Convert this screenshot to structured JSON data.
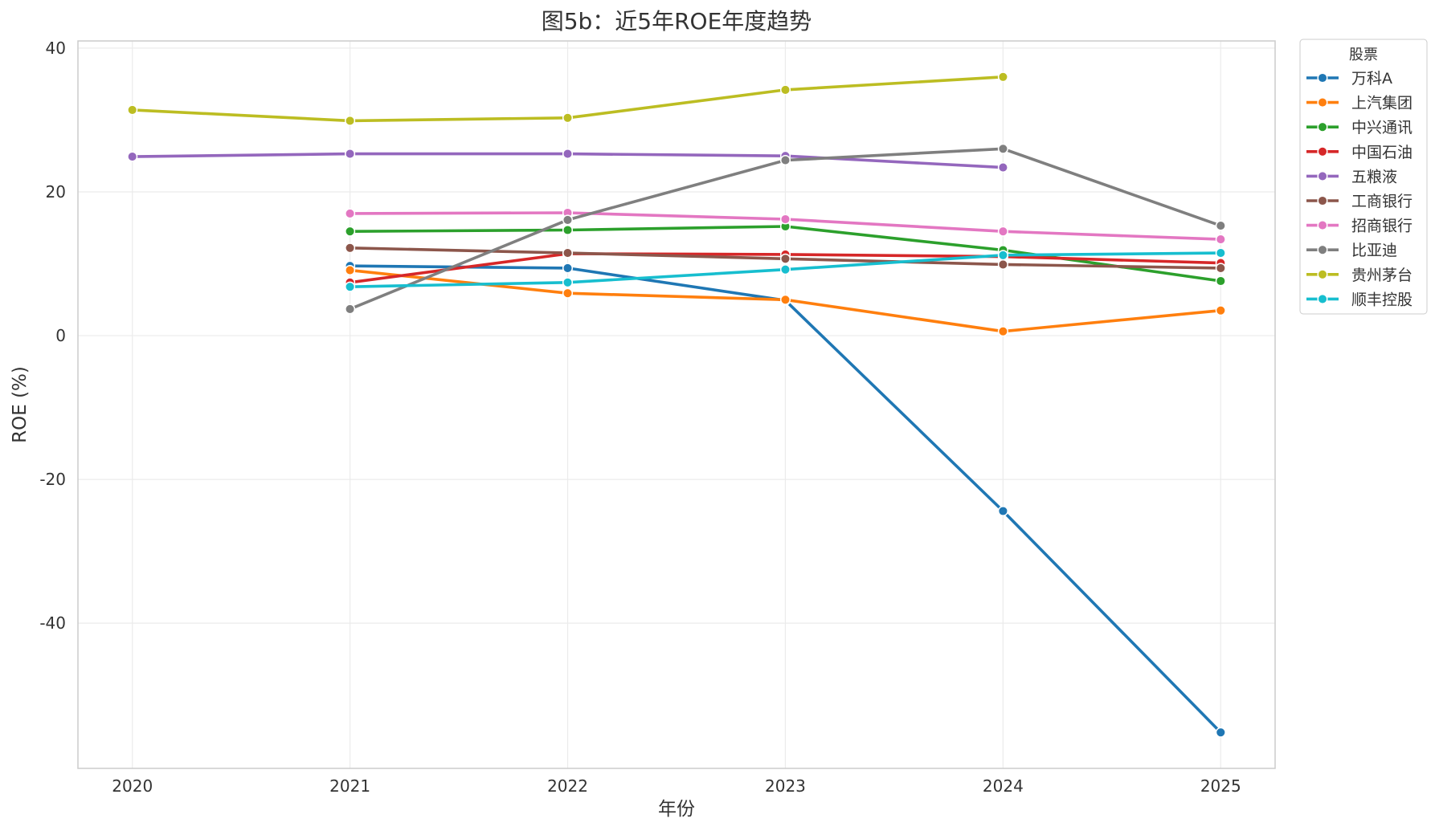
{
  "chart_data": {
    "type": "line",
    "title": "图5b：近5年ROE年度趋势",
    "xlabel": "年份",
    "ylabel": "ROE (%)",
    "x": [
      2020,
      2021,
      2022,
      2023,
      2024,
      2025
    ],
    "x_tick_labels": [
      "2020",
      "2021",
      "2022",
      "2023",
      "2024",
      "2025"
    ],
    "xlim": [
      2019.75,
      2025.25
    ],
    "ylim": [
      -60.2,
      41
    ],
    "y_ticks": [
      -40,
      -20,
      0,
      20,
      40
    ],
    "y_tick_labels": [
      "-40",
      "-20",
      "0",
      "20",
      "40"
    ],
    "grid": true,
    "legend": {
      "title": "股票",
      "placement": "outside-top-right"
    },
    "series": [
      {
        "name": "万科A",
        "color": "#1f77b4",
        "values": [
          null,
          9.7,
          9.4,
          4.9,
          -24.4,
          -55.2
        ]
      },
      {
        "name": "上汽集团",
        "color": "#ff7f0e",
        "values": [
          null,
          9.1,
          5.9,
          5.0,
          0.6,
          3.5
        ]
      },
      {
        "name": "中兴通讯",
        "color": "#2ca02c",
        "values": [
          null,
          14.5,
          14.7,
          15.2,
          11.9,
          7.6
        ]
      },
      {
        "name": "中国石油",
        "color": "#d62728",
        "values": [
          null,
          7.4,
          11.4,
          11.3,
          11.0,
          10.1
        ]
      },
      {
        "name": "五粮液",
        "color": "#9467bd",
        "values": [
          24.9,
          25.3,
          25.3,
          25.0,
          23.4,
          null
        ]
      },
      {
        "name": "工商银行",
        "color": "#8c564b",
        "values": [
          null,
          12.2,
          11.5,
          10.7,
          9.9,
          9.4
        ]
      },
      {
        "name": "招商银行",
        "color": "#e377c2",
        "values": [
          null,
          17.0,
          17.1,
          16.2,
          14.5,
          13.4
        ]
      },
      {
        "name": "比亚迪",
        "color": "#7f7f7f",
        "values": [
          null,
          3.7,
          16.1,
          24.4,
          26.0,
          15.3
        ]
      },
      {
        "name": "贵州茅台",
        "color": "#bcbd22",
        "values": [
          31.4,
          29.9,
          30.3,
          34.2,
          36.0,
          null
        ]
      },
      {
        "name": "顺丰控股",
        "color": "#17becf",
        "values": [
          null,
          6.8,
          7.4,
          9.2,
          11.2,
          11.5
        ]
      }
    ]
  }
}
